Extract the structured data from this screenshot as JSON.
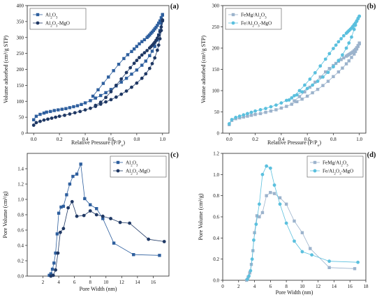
{
  "chart_data": [
    {
      "panel_label": "(a)",
      "type": "scatter",
      "title": "",
      "xlabel": "Relative Pressure (P/P",
      "xlabel_sub": "o",
      "xlabel_end": ")",
      "ylabel": "Volume adsorbed (cm³/g STP)",
      "xlim": [
        -0.05,
        1.05
      ],
      "ylim": [
        0,
        400
      ],
      "xticks": [
        0.0,
        0.2,
        0.4,
        0.6,
        0.8,
        1.0
      ],
      "xtick_labels": [
        "0.0",
        "0.2",
        "0.4",
        "0.6",
        "0.8",
        "1.0"
      ],
      "yticks": [
        0,
        50,
        100,
        150,
        200,
        250,
        300,
        350,
        400
      ],
      "ytick_labels": [
        "0",
        "50",
        "100",
        "150",
        "200",
        "250",
        "300",
        "350",
        "400"
      ],
      "legend_position": "top-left",
      "series": [
        {
          "name": "Al2O3",
          "legend_parts": [
            [
              "Al",
              ""
            ],
            [
              "2",
              "sub"
            ],
            [
              "O",
              ""
            ],
            [
              "3",
              "sub"
            ]
          ],
          "color": "#2e5f9e",
          "marker": "square",
          "adsorption": {
            "x": [
              0.0,
              0.02,
              0.05,
              0.08,
              0.1,
              0.13,
              0.16,
              0.19,
              0.22,
              0.25,
              0.28,
              0.31,
              0.34,
              0.37,
              0.4,
              0.44,
              0.48,
              0.52,
              0.56,
              0.6,
              0.64,
              0.68,
              0.72,
              0.76,
              0.8,
              0.84,
              0.87,
              0.9,
              0.92,
              0.94,
              0.96,
              0.97,
              0.98,
              0.99,
              1.0
            ],
            "y": [
              42,
              53,
              59,
              63,
              66,
              68,
              71,
              73,
              75,
              77,
              80,
              83,
              86,
              90,
              95,
              102,
              110,
              118,
              127,
              137,
              148,
              160,
              172,
              185,
              198,
              213,
              226,
              243,
              257,
              272,
              292,
              308,
              322,
              345,
              370
            ]
          },
          "desorption": {
            "x": [
              1.0,
              0.99,
              0.98,
              0.97,
              0.96,
              0.95,
              0.94,
              0.93,
              0.92,
              0.91,
              0.9,
              0.89,
              0.88,
              0.86,
              0.84,
              0.82,
              0.8,
              0.78,
              0.76,
              0.73,
              0.7,
              0.66,
              0.62,
              0.58,
              0.54,
              0.5,
              0.46
            ],
            "y": [
              372,
              362,
              352,
              345,
              338,
              332,
              327,
              322,
              317,
              313,
              308,
              304,
              300,
              293,
              287,
              280,
              272,
              264,
              256,
              246,
              234,
              216,
              196,
              176,
              156,
              136,
              116
            ]
          }
        },
        {
          "name": "Al2O3-MgO",
          "legend_parts": [
            [
              "Al",
              ""
            ],
            [
              "2",
              "sub"
            ],
            [
              "O",
              ""
            ],
            [
              "3",
              "sub"
            ],
            [
              "-MgO",
              ""
            ]
          ],
          "color": "#1f3864",
          "marker": "circle",
          "adsorption": {
            "x": [
              0.0,
              0.02,
              0.05,
              0.08,
              0.11,
              0.14,
              0.17,
              0.2,
              0.24,
              0.28,
              0.32,
              0.36,
              0.4,
              0.44,
              0.48,
              0.52,
              0.56,
              0.6,
              0.64,
              0.68,
              0.72,
              0.76,
              0.8,
              0.84,
              0.87,
              0.9,
              0.92,
              0.94,
              0.96,
              0.97,
              0.98,
              0.99,
              1.0
            ],
            "y": [
              25,
              33,
              37,
              41,
              44,
              47,
              50,
              53,
              56,
              60,
              64,
              68,
              73,
              78,
              84,
              91,
              98,
              105,
              113,
              122,
              132,
              144,
              157,
              172,
              186,
              203,
              218,
              236,
              260,
              276,
              296,
              322,
              352
            ]
          },
          "desorption": {
            "x": [
              1.0,
              0.99,
              0.98,
              0.97,
              0.96,
              0.95,
              0.94,
              0.93,
              0.92,
              0.91,
              0.9,
              0.88,
              0.86,
              0.84,
              0.82,
              0.8,
              0.78,
              0.75,
              0.72,
              0.68,
              0.64,
              0.6,
              0.56,
              0.52,
              0.48
            ],
            "y": [
              355,
              333,
              318,
              307,
              298,
              291,
              285,
              280,
              275,
              271,
              267,
              259,
              252,
              245,
              237,
              228,
              219,
              205,
              190,
              170,
              150,
              130,
              112,
              97,
              87
            ]
          }
        }
      ]
    },
    {
      "panel_label": "(b)",
      "type": "scatter",
      "title": "",
      "xlabel": "Relative Pressure (P/P",
      "xlabel_sub": "o",
      "xlabel_end": ")",
      "ylabel": "Volume adsorbed (cm³/g STP)",
      "xlim": [
        -0.05,
        1.05
      ],
      "ylim": [
        0,
        300
      ],
      "xticks": [
        0.0,
        0.2,
        0.4,
        0.6,
        0.8,
        1.0
      ],
      "xtick_labels": [
        "0.0",
        "0.2",
        "0.4",
        "0.6",
        "0.8",
        "1.0"
      ],
      "yticks": [
        0,
        50,
        100,
        150,
        200,
        250,
        300
      ],
      "ytick_labels": [
        "0",
        "50",
        "100",
        "150",
        "200",
        "250",
        "300"
      ],
      "legend_position": "top-left",
      "series": [
        {
          "name": "FeMg/Al2O3",
          "legend_parts": [
            [
              "FeMg/Al",
              ""
            ],
            [
              "2",
              "sub"
            ],
            [
              "O",
              ""
            ],
            [
              "3",
              "sub"
            ]
          ],
          "color": "#9cb3cc",
          "marker": "square",
          "adsorption": {
            "x": [
              0.0,
              0.02,
              0.05,
              0.08,
              0.11,
              0.14,
              0.17,
              0.2,
              0.24,
              0.28,
              0.32,
              0.36,
              0.4,
              0.44,
              0.48,
              0.52,
              0.56,
              0.6,
              0.64,
              0.68,
              0.72,
              0.76,
              0.8,
              0.84,
              0.87,
              0.9,
              0.92,
              0.94,
              0.96,
              0.97,
              0.98,
              0.99,
              1.0
            ],
            "y": [
              20,
              30,
              34,
              36,
              38,
              40,
              42,
              44,
              46,
              49,
              52,
              55,
              59,
              63,
              68,
              74,
              80,
              87,
              95,
              103,
              112,
              122,
              133,
              144,
              153,
              163,
              170,
              178,
              186,
              192,
              198,
              204,
              210
            ]
          },
          "desorption": {
            "x": [
              1.0,
              0.99,
              0.98,
              0.97,
              0.96,
              0.95,
              0.94,
              0.93,
              0.92,
              0.91,
              0.9,
              0.88,
              0.86,
              0.84,
              0.82,
              0.8,
              0.77,
              0.74,
              0.7,
              0.66,
              0.62,
              0.58,
              0.54,
              0.5
            ],
            "y": [
              212,
              206,
              201,
              197,
              194,
              191,
              189,
              187,
              185,
              183,
              181,
              177,
              173,
              169,
              164,
              159,
              152,
              144,
              132,
              120,
              108,
              97,
              86,
              76
            ]
          }
        },
        {
          "name": "Fe/Al2O3-MgO",
          "legend_parts": [
            [
              "Fe/Al",
              ""
            ],
            [
              "2",
              "sub"
            ],
            [
              "O",
              ""
            ],
            [
              "3",
              "sub"
            ],
            [
              "-MgO",
              ""
            ]
          ],
          "color": "#5bc0de",
          "marker": "circle",
          "adsorption": {
            "x": [
              0.0,
              0.02,
              0.05,
              0.08,
              0.11,
              0.14,
              0.17,
              0.2,
              0.24,
              0.28,
              0.32,
              0.36,
              0.4,
              0.44,
              0.48,
              0.52,
              0.56,
              0.6,
              0.64,
              0.68,
              0.72,
              0.76,
              0.8,
              0.84,
              0.87,
              0.9,
              0.92,
              0.94,
              0.96,
              0.97,
              0.98,
              0.99,
              1.0
            ],
            "y": [
              22,
              32,
              37,
              40,
              43,
              46,
              49,
              52,
              55,
              58,
              62,
              66,
              71,
              77,
              83,
              90,
              97,
              105,
              113,
              122,
              132,
              143,
              156,
              171,
              184,
              200,
              212,
              226,
              244,
              254,
              263,
              270,
              275
            ]
          },
          "desorption": {
            "x": [
              1.0,
              0.99,
              0.98,
              0.97,
              0.96,
              0.95,
              0.94,
              0.93,
              0.92,
              0.91,
              0.9,
              0.88,
              0.86,
              0.84,
              0.82,
              0.8,
              0.77,
              0.74,
              0.7,
              0.66,
              0.62,
              0.58,
              0.54,
              0.5,
              0.46
            ],
            "y": [
              275,
              269,
              264,
              259,
              255,
              251,
              247,
              244,
              241,
              238,
              235,
              229,
              222,
              215,
              207,
              199,
              187,
              174,
              158,
              142,
              127,
              113,
              100,
              88,
              78
            ]
          }
        }
      ]
    },
    {
      "panel_label": "(c)",
      "type": "line",
      "title": "",
      "xlabel": "Pore Width (nm)",
      "ylabel": "Pore Volume (cm³/g)",
      "xlim": [
        0,
        18
      ],
      "ylim": [
        0,
        1.6
      ],
      "xticks": [
        2,
        4,
        6,
        8,
        10,
        12,
        14,
        16
      ],
      "xtick_labels": [
        "2",
        "4",
        "6",
        "8",
        "10",
        "12",
        "14",
        "16"
      ],
      "yticks": [
        0.0,
        0.2,
        0.4,
        0.6,
        0.8,
        1.0,
        1.2,
        1.4
      ],
      "ytick_labels": [
        "0.0",
        "0.2",
        "0.4",
        "0.6",
        "0.8",
        "1.0",
        "1.2",
        "1.4"
      ],
      "legend_position": "top-right",
      "series": [
        {
          "name": "Al2O3",
          "legend_parts": [
            [
              "Al",
              ""
            ],
            [
              "2",
              "sub"
            ],
            [
              "O",
              ""
            ],
            [
              "3",
              "sub"
            ]
          ],
          "color": "#2e5f9e",
          "marker": "square",
          "x": [
            2.8,
            3.0,
            3.2,
            3.4,
            3.6,
            3.8,
            4.0,
            4.3,
            4.6,
            5.0,
            5.4,
            5.8,
            6.3,
            6.8,
            7.3,
            8.0,
            8.8,
            9.6,
            11.0,
            13.5,
            16.8
          ],
          "y": [
            0.01,
            0.03,
            0.09,
            0.17,
            0.3,
            0.55,
            0.82,
            0.9,
            0.91,
            1.06,
            1.2,
            1.3,
            1.33,
            1.46,
            1.01,
            0.93,
            0.88,
            0.75,
            0.43,
            0.28,
            0.27
          ]
        },
        {
          "name": "Al2O3-MgO",
          "legend_parts": [
            [
              "Al",
              ""
            ],
            [
              "2",
              "sub"
            ],
            [
              "O",
              ""
            ],
            [
              "3",
              "sub"
            ],
            [
              "-MgO",
              ""
            ]
          ],
          "color": "#1f3864",
          "marker": "circle",
          "x": [
            3.0,
            3.3,
            3.6,
            3.9,
            4.2,
            4.6,
            5.2,
            5.7,
            6.3,
            7.2,
            8.0,
            8.8,
            9.6,
            10.6,
            11.8,
            13.0,
            15.4,
            17.4
          ],
          "y": [
            0.0,
            0.01,
            0.08,
            0.3,
            0.57,
            0.62,
            0.89,
            0.97,
            0.78,
            0.79,
            0.85,
            0.8,
            0.78,
            0.75,
            0.7,
            0.69,
            0.48,
            0.45
          ]
        }
      ]
    },
    {
      "panel_label": "(d)",
      "type": "line",
      "title": "",
      "xlabel": "Pore Width (nm)",
      "ylabel": "Pore Volume (cm³/g)",
      "xlim": [
        0,
        18
      ],
      "ylim": [
        0,
        1.2
      ],
      "xticks": [
        0,
        2,
        4,
        6,
        8,
        10,
        12,
        14,
        16,
        18
      ],
      "xtick_labels": [
        "0",
        "2",
        "4",
        "6",
        "8",
        "10",
        "12",
        "14",
        "16",
        "18"
      ],
      "yticks": [
        0.0,
        0.2,
        0.4,
        0.6,
        0.8,
        1.0,
        1.2
      ],
      "ytick_labels": [
        "0.0",
        "0.2",
        "0.4",
        "0.6",
        "0.8",
        "1.0",
        "1.2"
      ],
      "legend_position": "top-right",
      "series": [
        {
          "name": "FeMg/Al2O3",
          "legend_parts": [
            [
              "FeMg/Al",
              ""
            ],
            [
              "2",
              "sub"
            ],
            [
              "O",
              ""
            ],
            [
              "3",
              "sub"
            ]
          ],
          "color": "#9cb3cc",
          "marker": "square",
          "x": [
            3.0,
            3.2,
            3.4,
            3.6,
            3.8,
            4.0,
            4.3,
            4.6,
            5.0,
            5.5,
            6.0,
            6.5,
            7.2,
            8.0,
            9.0,
            10.0,
            11.0,
            13.4,
            16.6
          ],
          "y": [
            0.0,
            0.03,
            0.07,
            0.15,
            0.28,
            0.45,
            0.61,
            0.6,
            0.64,
            0.8,
            0.83,
            0.82,
            0.78,
            0.72,
            0.56,
            0.45,
            0.3,
            0.12,
            0.11
          ]
        },
        {
          "name": "Fe/Al2O3-MgO",
          "legend_parts": [
            [
              "Fe/Al",
              ""
            ],
            [
              "2",
              "sub"
            ],
            [
              "O",
              ""
            ],
            [
              "3",
              "sub"
            ],
            [
              "-MgO",
              ""
            ]
          ],
          "color": "#5bc0de",
          "marker": "circle",
          "x": [
            3.1,
            3.3,
            3.5,
            3.7,
            3.9,
            4.2,
            4.6,
            5.0,
            5.5,
            6.0,
            6.5,
            7.2,
            8.0,
            9.0,
            10.0,
            11.2,
            13.4,
            17.0
          ],
          "y": [
            0.01,
            0.04,
            0.09,
            0.2,
            0.38,
            0.53,
            0.72,
            1.0,
            1.08,
            1.06,
            0.9,
            0.72,
            0.54,
            0.37,
            0.27,
            0.24,
            0.18,
            0.17
          ]
        }
      ]
    }
  ]
}
